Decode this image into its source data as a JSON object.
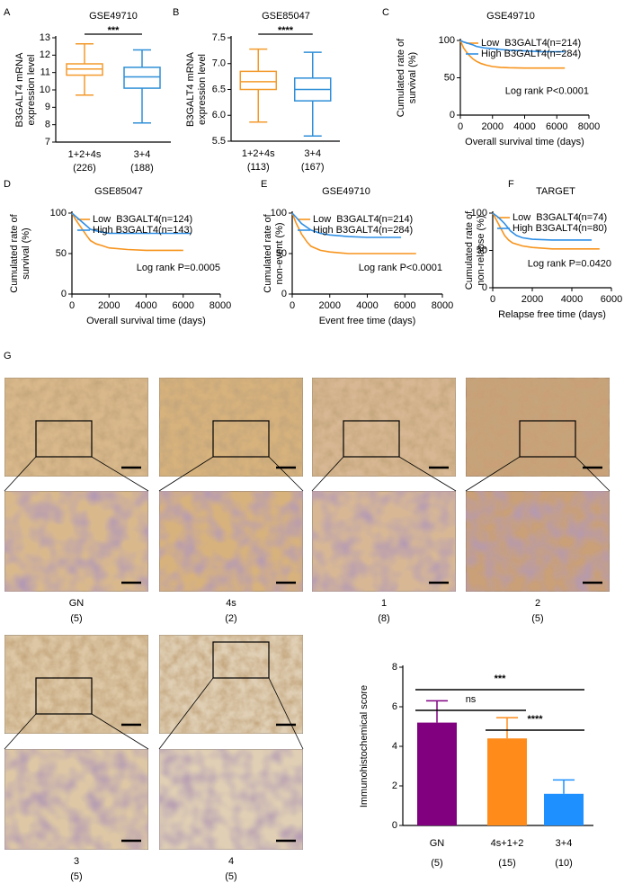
{
  "chart_data": [
    {
      "type": "box",
      "label": "A",
      "title": "GSE49710",
      "ylabel": [
        "B3GALT4 mRNA",
        "expression level"
      ],
      "categories": [
        "1+2+4s",
        "3+4"
      ],
      "sample_sizes": [
        "(226)",
        "(188)"
      ],
      "colors": [
        "#f39a2b",
        "#2f8fd8"
      ],
      "values": [
        {
          "min": 9.7,
          "q1": 10.85,
          "median": 11.2,
          "q3": 11.5,
          "max": 12.65
        },
        {
          "min": 8.1,
          "q1": 10.1,
          "median": 10.75,
          "q3": 11.3,
          "max": 12.3
        }
      ],
      "ylim": [
        7,
        13
      ],
      "yticks": [
        7,
        8,
        9,
        10,
        11,
        12,
        13
      ],
      "significance": "***"
    },
    {
      "type": "box",
      "label": "B",
      "title": "GSE85047",
      "ylabel": [
        "B3GALT4 mRNA",
        "expression level"
      ],
      "categories": [
        "1+2+4s",
        "3+4"
      ],
      "sample_sizes": [
        "(113)",
        "(167)"
      ],
      "colors": [
        "#f39a2b",
        "#2f8fd8"
      ],
      "values": [
        {
          "min": 5.87,
          "q1": 6.5,
          "median": 6.65,
          "q3": 6.85,
          "max": 7.28
        },
        {
          "min": 5.6,
          "q1": 6.28,
          "median": 6.5,
          "q3": 6.72,
          "max": 7.22
        }
      ],
      "ylim": [
        5.5,
        7.5
      ],
      "yticks": [
        5.5,
        {
          "value": 6,
          "label": "6.0"
        },
        6.5,
        {
          "value": 7,
          "label": "7.0"
        },
        7.5
      ],
      "significance": "****"
    },
    {
      "type": "line",
      "label": "C",
      "title": "GSE49710",
      "ylabel": [
        "Cumulated rate of",
        "survival (%)"
      ],
      "xlabel": "Overall survival time (days)",
      "annotation": "Log rank P<0.0001",
      "xlim": [
        0,
        8000
      ],
      "xticks": [
        0,
        2000,
        4000,
        6000,
        8000
      ],
      "ylim": [
        0,
        100
      ],
      "yticks": [
        0,
        50,
        100
      ],
      "series": [
        {
          "name": "Low  B3GALT4",
          "n": "(n=214)",
          "color": "#f7941d",
          "x": [
            0,
            100,
            200,
            400,
            600,
            800,
            1000,
            1300,
            1600,
            2000,
            2500,
            3000,
            4000,
            5000,
            6500
          ],
          "values": [
            100,
            95,
            90,
            84,
            79,
            75,
            72,
            69,
            67,
            65,
            64,
            63.5,
            63,
            63,
            63
          ]
        },
        {
          "name": "High B3GALT4",
          "n": "(n=284)",
          "color": "#2f8fe6",
          "x": [
            0,
            200,
            500,
            800,
            1000,
            1500,
            2000,
            2500,
            3000,
            4000,
            5000,
            6500
          ],
          "values": [
            100,
            98,
            96,
            94,
            92,
            90,
            89,
            88,
            87,
            86,
            85,
            85
          ]
        }
      ]
    },
    {
      "type": "line",
      "label": "D",
      "title": "GSE85047",
      "ylabel": [
        "Cumulated rate of",
        "survival (%)"
      ],
      "xlabel": "Overall survival time (days)",
      "annotation": "Log rank P=0.0005",
      "xlim": [
        0,
        8000
      ],
      "xticks": [
        0,
        2000,
        4000,
        6000,
        8000
      ],
      "ylim": [
        0,
        100
      ],
      "yticks": [
        0,
        50,
        100
      ],
      "series": [
        {
          "name": "Low  B3GALT4",
          "n": "(n=124)",
          "color": "#f7941d",
          "x": [
            0,
            200,
            500,
            800,
            1000,
            1300,
            1600,
            2000,
            3000,
            4000,
            5000,
            6000
          ],
          "values": [
            100,
            92,
            82,
            72,
            66,
            62,
            60,
            57,
            55,
            54,
            54,
            54
          ]
        },
        {
          "name": "High B3GALT4",
          "n": "(n=143)",
          "color": "#2f8fe6",
          "x": [
            0,
            200,
            500,
            800,
            1000,
            1500,
            2000,
            3000,
            4000,
            5000,
            6400
          ],
          "values": [
            100,
            96,
            90,
            84,
            80,
            77,
            75,
            75,
            75,
            75,
            75
          ]
        }
      ]
    },
    {
      "type": "line",
      "label": "E",
      "title": "GSE49710",
      "ylabel": [
        "Cumulated rate of",
        "non-event (%)"
      ],
      "xlabel": "Event free time (days)",
      "annotation": "Log rank P<0.0001",
      "xlim": [
        0,
        8000
      ],
      "xticks": [
        0,
        2000,
        4000,
        6000,
        8000
      ],
      "ylim": [
        0,
        100
      ],
      "yticks": [
        0,
        50,
        100
      ],
      "series": [
        {
          "name": "Low  B3GALT4",
          "n": "(n=214)",
          "color": "#f7941d",
          "x": [
            0,
            200,
            500,
            800,
            1000,
            1500,
            2000,
            3000,
            4000,
            5000,
            6600
          ],
          "values": [
            100,
            88,
            74,
            64,
            59,
            54,
            52,
            50,
            50,
            50,
            50
          ]
        },
        {
          "name": "High B3GALT4",
          "n": "(n=284)",
          "color": "#2f8fe6",
          "x": [
            0,
            200,
            500,
            1000,
            1500,
            2000,
            3000,
            4000,
            5000,
            5800
          ],
          "values": [
            100,
            95,
            87,
            79,
            75,
            73,
            71,
            70,
            70,
            70
          ]
        }
      ]
    },
    {
      "type": "line",
      "label": "F",
      "title": "TARGET",
      "ylabel": [
        "Cumulated rate of",
        "non-relapse (%)"
      ],
      "xlabel": "Relapse free time (days)",
      "annotation": "Log rank P=0.0420",
      "xlim": [
        0,
        6000
      ],
      "xticks": [
        0,
        2000,
        4000,
        6000
      ],
      "ylim": [
        0,
        100
      ],
      "yticks": [
        0,
        50,
        100
      ],
      "series": [
        {
          "name": "Low  B3GALT4",
          "n": "(n=74)",
          "color": "#f7941d",
          "x": [
            0,
            200,
            400,
            600,
            800,
            1000,
            1500,
            2000,
            3000,
            4000,
            5400
          ],
          "values": [
            100,
            90,
            80,
            70,
            64,
            60,
            56,
            54,
            52,
            52,
            52
          ]
        },
        {
          "name": "High B3GALT4",
          "n": "(n=80)",
          "color": "#2f8fe6",
          "x": [
            0,
            300,
            600,
            900,
            1200,
            1500,
            2000,
            3000,
            4000,
            5000
          ],
          "values": [
            100,
            94,
            86,
            76,
            70,
            67,
            65,
            64,
            64,
            64
          ]
        }
      ]
    },
    {
      "type": "bar",
      "ylabel": "Immunohistochemical score",
      "categories": [
        "GN",
        "4s+1+2",
        "3+4"
      ],
      "sample_sizes": [
        "(5)",
        "(15)",
        "(10)"
      ],
      "values": [
        5.2,
        4.4,
        1.6
      ],
      "errors": [
        1.1,
        1.05,
        0.7
      ],
      "colors": [
        "#800080",
        "#ff8c1a",
        "#1e90ff"
      ],
      "ylim": [
        0,
        8
      ],
      "yticks": [
        0,
        2,
        4,
        6,
        8
      ],
      "significance": [
        "ns",
        "***",
        "****"
      ]
    }
  ],
  "histology": {
    "label": "G",
    "panels": [
      {
        "stage": "GN",
        "n": "(5)"
      },
      {
        "stage": "4s",
        "n": "(2)"
      },
      {
        "stage": "1",
        "n": "(8)"
      },
      {
        "stage": "2",
        "n": "(5)"
      },
      {
        "stage": "3",
        "n": "(5)"
      },
      {
        "stage": "4",
        "n": "(5)"
      }
    ]
  }
}
